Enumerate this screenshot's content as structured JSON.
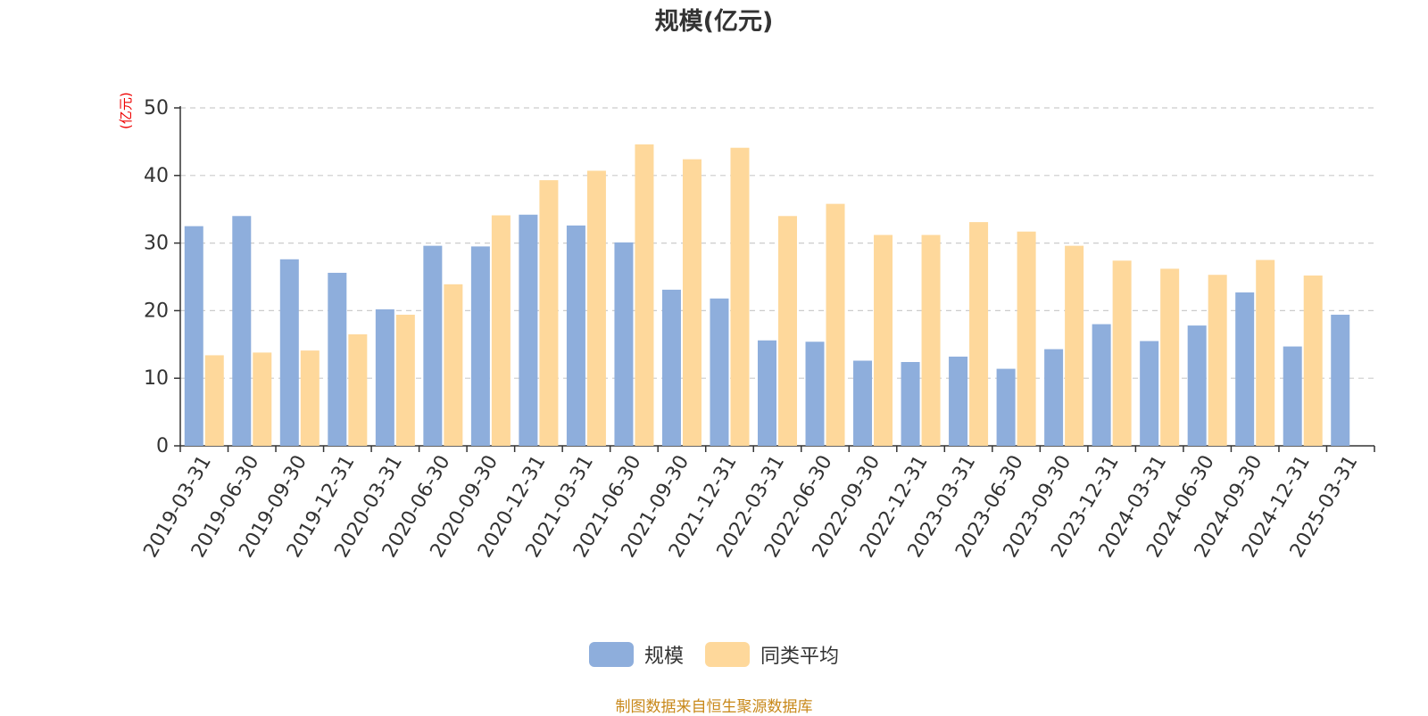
{
  "chart_data": {
    "type": "bar",
    "title": "规模(亿元)",
    "ylabel": "(亿元)",
    "xlabel": "",
    "ylim": [
      0,
      50
    ],
    "yticks": [
      0,
      10,
      20,
      30,
      40,
      50
    ],
    "grid": true,
    "legend_position": "bottom",
    "categories": [
      "2019-03-31",
      "2019-06-30",
      "2019-09-30",
      "2019-12-31",
      "2020-03-31",
      "2020-06-30",
      "2020-09-30",
      "2020-12-31",
      "2021-03-31",
      "2021-06-30",
      "2021-09-30",
      "2021-12-31",
      "2022-03-31",
      "2022-06-30",
      "2022-09-30",
      "2022-12-31",
      "2023-03-31",
      "2023-06-30",
      "2023-09-30",
      "2023-12-31",
      "2024-03-31",
      "2024-06-30",
      "2024-09-30",
      "2024-12-31",
      "2025-03-31"
    ],
    "series": [
      {
        "name": "规模",
        "color": "#8eaedc",
        "values": [
          32.5,
          34.0,
          27.6,
          25.6,
          20.2,
          29.6,
          29.5,
          34.2,
          32.6,
          30.1,
          23.1,
          21.8,
          15.6,
          15.4,
          12.6,
          12.4,
          13.2,
          11.4,
          14.3,
          18.0,
          15.5,
          17.8,
          22.7,
          14.7,
          19.4
        ]
      },
      {
        "name": "同类平均",
        "color": "#fed89b",
        "values": [
          13.4,
          13.8,
          14.1,
          16.5,
          19.4,
          23.9,
          34.1,
          39.3,
          40.7,
          44.6,
          42.4,
          44.1,
          34.0,
          35.8,
          31.2,
          31.2,
          33.1,
          31.7,
          29.6,
          27.4,
          26.2,
          25.3,
          27.5,
          25.2,
          null
        ]
      }
    ]
  },
  "source_text": "制图数据来自恒生聚源数据库"
}
